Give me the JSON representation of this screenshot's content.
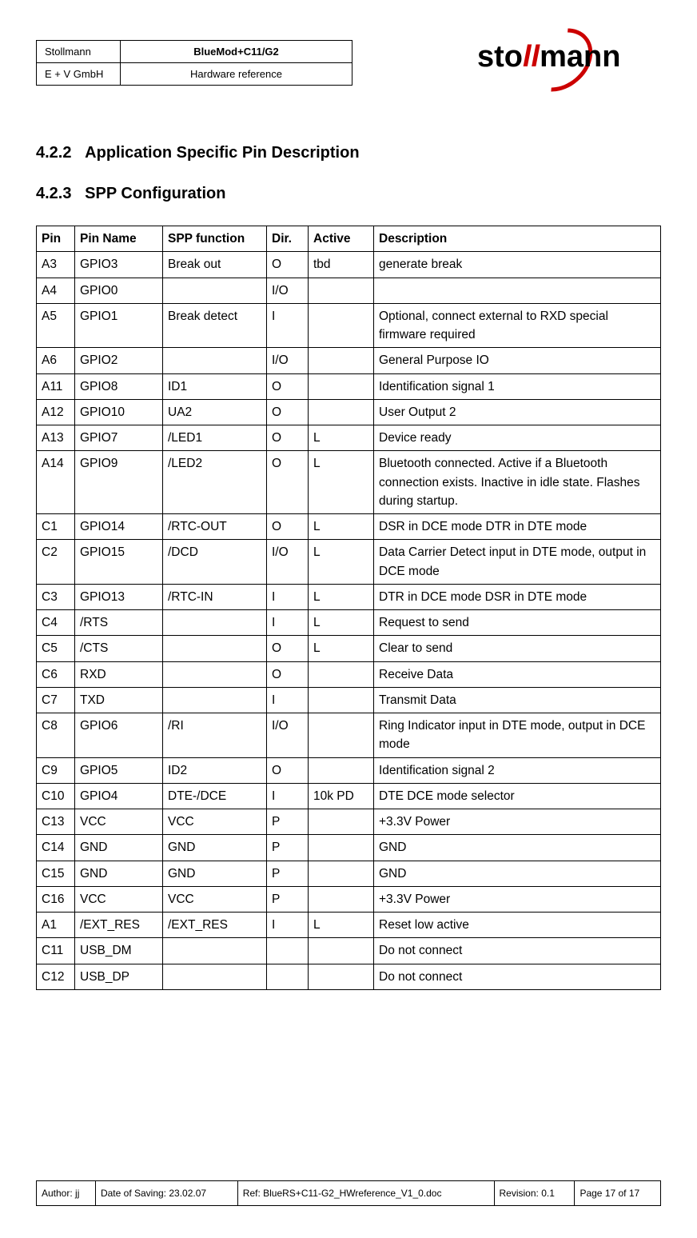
{
  "header": {
    "company1": "Stollmann",
    "company2": "E + V GmbH",
    "product": "BlueMod+C11/G2",
    "doctype": "Hardware reference"
  },
  "logo": {
    "part1": "sto",
    "part2": "ll",
    "part3": "mann"
  },
  "section1": {
    "number": "4.2.2",
    "title": "Application Specific Pin Description"
  },
  "section2": {
    "number": "4.2.3",
    "title": "SPP Configuration"
  },
  "table": {
    "headers": [
      "Pin",
      "Pin Name",
      "SPP function",
      "Dir.",
      "Active",
      "Description"
    ],
    "rows": [
      [
        "A3",
        "GPIO3",
        "Break out",
        "O",
        "tbd",
        "generate break"
      ],
      [
        "A4",
        "GPIO0",
        "",
        "I/O",
        "",
        ""
      ],
      [
        "A5",
        "GPIO1",
        "Break detect",
        "I",
        "",
        "Optional, connect external to RXD special firmware required"
      ],
      [
        "A6",
        "GPIO2",
        "",
        "I/O",
        "",
        "General Purpose IO"
      ],
      [
        "A11",
        "GPIO8",
        "ID1",
        "O",
        "",
        "Identification signal 1"
      ],
      [
        "A12",
        "GPIO10",
        "UA2",
        "O",
        "",
        "User Output 2"
      ],
      [
        "A13",
        "GPIO7",
        "/LED1",
        "O",
        "L",
        "Device ready"
      ],
      [
        "A14",
        "GPIO9",
        "/LED2",
        "O",
        "L",
        "Bluetooth connected. Active if a Bluetooth connection exists. Inactive in idle state. Flashes during startup."
      ],
      [
        "C1",
        "GPIO14",
        "/RTC-OUT",
        "O",
        "L",
        "DSR in DCE mode DTR in DTE mode"
      ],
      [
        "C2",
        "GPIO15",
        "/DCD",
        "I/O",
        "L",
        "Data Carrier Detect input in DTE mode, output in DCE mode"
      ],
      [
        "C3",
        "GPIO13",
        "/RTC-IN",
        "I",
        "L",
        "DTR in DCE mode DSR in DTE mode"
      ],
      [
        "C4",
        "/RTS",
        "",
        "I",
        "L",
        "Request to send"
      ],
      [
        "C5",
        "/CTS",
        "",
        "O",
        "L",
        "Clear to send"
      ],
      [
        "C6",
        "RXD",
        "",
        "O",
        "",
        "Receive Data"
      ],
      [
        "C7",
        "TXD",
        "",
        "I",
        "",
        "Transmit Data"
      ],
      [
        "C8",
        "GPIO6",
        "/RI",
        "I/O",
        "",
        "Ring Indicator input in DTE mode, output in DCE mode"
      ],
      [
        "C9",
        "GPIO5",
        "ID2",
        "O",
        "",
        "Identification signal 2"
      ],
      [
        "C10",
        "GPIO4",
        "DTE-/DCE",
        "I",
        "10k PD",
        "DTE DCE mode selector"
      ],
      [
        "C13",
        "VCC",
        "VCC",
        "P",
        "",
        "+3.3V Power"
      ],
      [
        "C14",
        "GND",
        "GND",
        "P",
        "",
        "GND"
      ],
      [
        "C15",
        "GND",
        "GND",
        "P",
        "",
        "GND"
      ],
      [
        "C16",
        "VCC",
        "VCC",
        "P",
        "",
        "+3.3V Power"
      ],
      [
        "A1",
        "/EXT_RES",
        "/EXT_RES",
        "I",
        "L",
        "Reset low active"
      ],
      [
        "C11",
        "USB_DM",
        "",
        "",
        "",
        "Do not connect"
      ],
      [
        "C12",
        "USB_DP",
        "",
        "",
        "",
        "Do not connect"
      ]
    ]
  },
  "footer": {
    "author": "Author: jj",
    "date": "Date of Saving: 23.02.07",
    "ref": "Ref: BlueRS+C11-G2_HWreference_V1_0.doc",
    "revision": "Revision: 0.1",
    "page": "Page 17 of 17"
  }
}
